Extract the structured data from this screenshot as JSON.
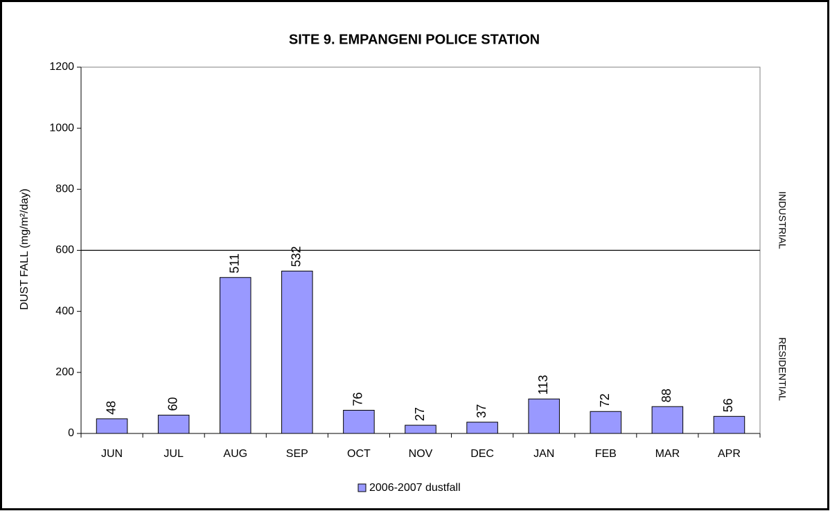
{
  "chart_data": {
    "type": "bar",
    "title": "SITE 9. EMPANGENI POLICE STATION",
    "y_label": "DUST FALL  (mg/m²/day)",
    "categories": [
      "JUN",
      "JUL",
      "AUG",
      "SEP",
      "OCT",
      "NOV",
      "DEC",
      "JAN",
      "FEB",
      "MAR",
      "APR"
    ],
    "series": [
      {
        "name": "2006-2007 dustfall",
        "color": "#9999ff",
        "values": [
          48,
          60,
          511,
          532,
          76,
          27,
          37,
          113,
          72,
          88,
          56
        ]
      }
    ],
    "ylim": [
      0,
      1200
    ],
    "yticks": [
      0,
      200,
      400,
      600,
      800,
      1000,
      1200
    ],
    "threshold": 600,
    "zone_labels": [
      "INDUSTRIAL",
      "RESIDENTIAL"
    ],
    "legend": "bottom"
  }
}
